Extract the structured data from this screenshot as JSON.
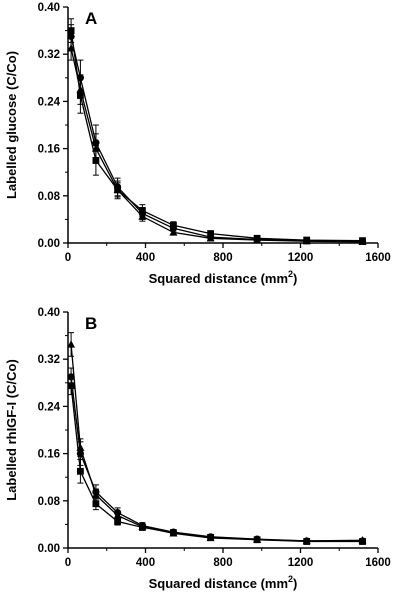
{
  "chart_data": [
    {
      "type": "line",
      "panel_label": "A",
      "xlabel": "Squared distance (mm",
      "xlabel_sup": "2",
      "xlabel_end": ")",
      "ylabel": "Labelled glucose (C/Co)",
      "xlim": [
        0,
        1600
      ],
      "ylim": [
        0,
        0.4
      ],
      "xticks": [
        "0",
        "400",
        "800",
        "1200",
        "1600"
      ],
      "yticks": [
        "0.00",
        "0.08",
        "0.16",
        "0.24",
        "0.32",
        "0.40"
      ],
      "legend": "none",
      "grid": false,
      "series": [
        {
          "marker": "circle",
          "x": [
            16,
            64,
            144,
            256,
            384,
            544,
            736,
            976,
            1232,
            1520
          ],
          "y": [
            0.35,
            0.28,
            0.17,
            0.095,
            0.05,
            0.025,
            0.01,
            0.006,
            0.004,
            0.003
          ],
          "err": [
            0.02,
            0.03,
            0.03,
            0.015,
            0.01,
            0.005,
            0.004,
            0.003,
            0.002,
            0.002
          ]
        },
        {
          "marker": "triangle",
          "x": [
            16,
            64,
            144,
            256,
            384,
            544,
            736,
            976,
            1232,
            1520
          ],
          "y": [
            0.33,
            0.26,
            0.16,
            0.09,
            0.045,
            0.018,
            0.008,
            0.005,
            0.003,
            0.002
          ],
          "err": [
            0.02,
            0.025,
            0.025,
            0.012,
            0.008,
            0.004,
            0.003,
            0.002,
            0.002,
            0.002
          ]
        },
        {
          "marker": "square",
          "x": [
            16,
            64,
            144,
            256,
            384,
            544,
            736,
            976,
            1232,
            1520
          ],
          "y": [
            0.36,
            0.25,
            0.14,
            0.09,
            0.055,
            0.03,
            0.016,
            0.008,
            0.005,
            0.004
          ],
          "err": [
            0.02,
            0.03,
            0.025,
            0.015,
            0.01,
            0.006,
            0.004,
            0.003,
            0.002,
            0.002
          ]
        }
      ]
    },
    {
      "type": "line",
      "panel_label": "B",
      "xlabel": "Squared distance (mm",
      "xlabel_sup": "2",
      "xlabel_end": ")",
      "ylabel": "Labelled rhIGF-I (C/Co)",
      "xlim": [
        0,
        1600
      ],
      "ylim": [
        0,
        0.4
      ],
      "xticks": [
        "0",
        "400",
        "800",
        "1200",
        "1600"
      ],
      "yticks": [
        "0.00",
        "0.08",
        "0.16",
        "0.24",
        "0.32",
        "0.40"
      ],
      "legend": "none",
      "grid": false,
      "series": [
        {
          "marker": "circle",
          "x": [
            16,
            64,
            144,
            256,
            384,
            544,
            736,
            976,
            1232,
            1520
          ],
          "y": [
            0.29,
            0.16,
            0.095,
            0.06,
            0.038,
            0.027,
            0.019,
            0.015,
            0.012,
            0.012
          ],
          "err": [
            0.015,
            0.02,
            0.012,
            0.008,
            0.005,
            0.004,
            0.003,
            0.003,
            0.002,
            0.003
          ]
        },
        {
          "marker": "triangle",
          "x": [
            16,
            64,
            144,
            256,
            384,
            544,
            736,
            976,
            1232,
            1520
          ],
          "y": [
            0.345,
            0.17,
            0.09,
            0.055,
            0.036,
            0.025,
            0.017,
            0.014,
            0.012,
            0.013
          ],
          "err": [
            0.02,
            0.015,
            0.01,
            0.007,
            0.005,
            0.004,
            0.003,
            0.003,
            0.002,
            0.003
          ]
        },
        {
          "marker": "square",
          "x": [
            16,
            64,
            144,
            256,
            384,
            544,
            736,
            976,
            1232,
            1520
          ],
          "y": [
            0.275,
            0.13,
            0.075,
            0.045,
            0.035,
            0.026,
            0.018,
            0.014,
            0.011,
            0.011
          ],
          "err": [
            0.015,
            0.02,
            0.01,
            0.006,
            0.005,
            0.004,
            0.003,
            0.003,
            0.002,
            0.003
          ]
        }
      ]
    }
  ]
}
